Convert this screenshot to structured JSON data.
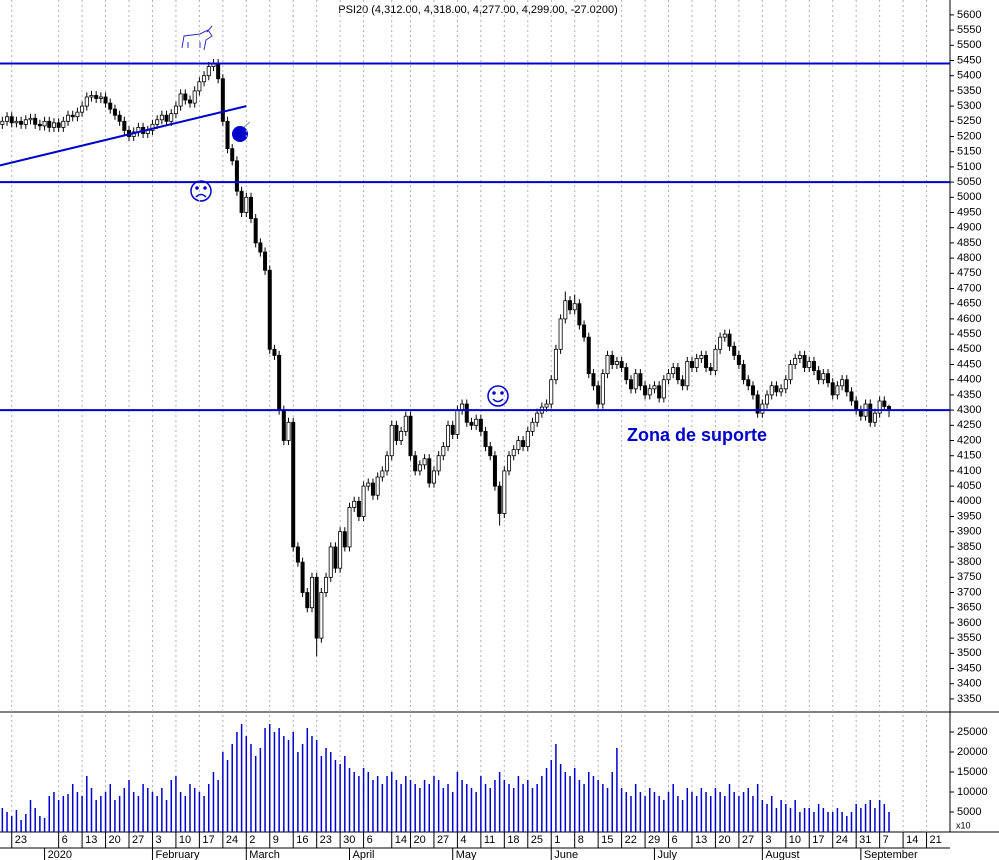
{
  "chart_data": {
    "type": "candlestick",
    "title": "PSI20 (4,312.00, 4,318.00, 4,277.00, 4,299.00, -27.0200)",
    "open": [
      5240,
      5250,
      5265,
      5245,
      5250,
      5240,
      5255,
      5260,
      5240,
      5235,
      5250,
      5230,
      5245,
      5230,
      5250,
      5270,
      5265,
      5280,
      5300,
      5330,
      5335,
      5325,
      5330,
      5310,
      5290,
      5270,
      5250,
      5220,
      5200,
      5215,
      5230,
      5210,
      5220,
      5240,
      5255,
      5270,
      5250,
      5275,
      5300,
      5340,
      5320,
      5310,
      5350,
      5380,
      5400,
      5430,
      5440,
      5390,
      5250,
      5160,
      5120,
      5020,
      4950,
      5000,
      4930,
      4850,
      4820,
      4760,
      4500,
      4480,
      4300,
      4200,
      4260,
      3850,
      3800,
      3700,
      3650,
      3750,
      3550,
      3700,
      3750,
      3850,
      3780,
      3900,
      3850,
      3980,
      4000,
      3950,
      4050,
      4060,
      4020,
      4080,
      4100,
      4150,
      4250,
      4200,
      4230,
      4280,
      4150,
      4100,
      4120,
      4140,
      4060,
      4100,
      4150,
      4180,
      4250,
      4220,
      4300,
      4320,
      4260,
      4250,
      4270,
      4230,
      4180,
      4150,
      4050,
      3960,
      4100,
      4150,
      4170,
      4200,
      4180,
      4230,
      4260,
      4290,
      4310,
      4320,
      4400,
      4500,
      4600,
      4660,
      4630,
      4650,
      4580,
      4540,
      4420,
      4380,
      4320,
      4420,
      4480,
      4450,
      4460,
      4440,
      4400,
      4370,
      4420,
      4380,
      4350,
      4370,
      4380,
      4340,
      4400,
      4420,
      4440,
      4400,
      4380,
      4460,
      4440,
      4470,
      4480,
      4440,
      4430,
      4500,
      4540,
      4550,
      4510,
      4480,
      4450,
      4400,
      4380,
      4350,
      4290,
      4320,
      4350,
      4380,
      4360,
      4370,
      4400,
      4450,
      4470,
      4480,
      4440,
      4460,
      4430,
      4400,
      4420,
      4390,
      4350,
      4380,
      4400,
      4360,
      4330,
      4300,
      4280,
      4320,
      4260,
      4290,
      4330,
      4312
    ],
    "high": [
      5265,
      5280,
      5280,
      5265,
      5265,
      5270,
      5275,
      5275,
      5255,
      5265,
      5265,
      5260,
      5260,
      5265,
      5285,
      5285,
      5295,
      5315,
      5345,
      5350,
      5350,
      5345,
      5345,
      5325,
      5305,
      5285,
      5265,
      5235,
      5230,
      5245,
      5245,
      5235,
      5255,
      5270,
      5285,
      5285,
      5290,
      5315,
      5355,
      5355,
      5335,
      5365,
      5395,
      5415,
      5445,
      5455,
      5455,
      5405,
      5265,
      5175,
      5135,
      5035,
      5015,
      5015,
      4945,
      4865,
      4835,
      4775,
      4515,
      4495,
      4315,
      4275,
      4275,
      3865,
      3815,
      3715,
      3765,
      3765,
      3715,
      3765,
      3865,
      3865,
      3915,
      3915,
      3995,
      4015,
      4015,
      4065,
      4075,
      4075,
      4095,
      4115,
      4165,
      4265,
      4265,
      4245,
      4295,
      4295,
      4165,
      4135,
      4155,
      4155,
      4115,
      4165,
      4195,
      4265,
      4265,
      4315,
      4335,
      4335,
      4275,
      4285,
      4285,
      4245,
      4195,
      4165,
      4065,
      4115,
      4165,
      4185,
      4215,
      4215,
      4245,
      4275,
      4305,
      4325,
      4335,
      4415,
      4515,
      4615,
      4690,
      4675,
      4680,
      4665,
      4595,
      4555,
      4435,
      4395,
      4435,
      4495,
      4495,
      4475,
      4475,
      4455,
      4415,
      4435,
      4435,
      4395,
      4385,
      4395,
      4395,
      4415,
      4435,
      4455,
      4455,
      4415,
      4475,
      4475,
      4485,
      4495,
      4495,
      4455,
      4515,
      4555,
      4565,
      4565,
      4525,
      4495,
      4465,
      4415,
      4395,
      4365,
      4335,
      4365,
      4395,
      4395,
      4385,
      4415,
      4465,
      4485,
      4495,
      4495,
      4475,
      4475,
      4445,
      4435,
      4435,
      4405,
      4395,
      4415,
      4415,
      4375,
      4345,
      4315,
      4335,
      4335,
      4305,
      4345,
      4345,
      4318
    ],
    "low": [
      5225,
      5235,
      5230,
      5230,
      5225,
      5225,
      5240,
      5225,
      5220,
      5220,
      5215,
      5215,
      5215,
      5215,
      5235,
      5250,
      5250,
      5265,
      5285,
      5315,
      5310,
      5310,
      5295,
      5275,
      5255,
      5235,
      5205,
      5185,
      5185,
      5200,
      5195,
      5195,
      5205,
      5225,
      5240,
      5235,
      5235,
      5260,
      5285,
      5305,
      5295,
      5295,
      5335,
      5365,
      5385,
      5415,
      5375,
      5235,
      5145,
      5105,
      5005,
      4935,
      4935,
      4915,
      4835,
      4805,
      4745,
      4485,
      4465,
      4285,
      4185,
      4185,
      3835,
      3785,
      3685,
      3635,
      3635,
      3490,
      3535,
      3685,
      3735,
      3765,
      3765,
      3835,
      3835,
      3965,
      3935,
      3935,
      4035,
      4005,
      4005,
      4065,
      4085,
      4135,
      4185,
      4185,
      4215,
      4135,
      4085,
      4085,
      4105,
      4045,
      4045,
      4085,
      4135,
      4165,
      4205,
      4205,
      4285,
      4245,
      4235,
      4235,
      4215,
      4165,
      4135,
      4035,
      3920,
      3945,
      4085,
      4135,
      4155,
      4165,
      4165,
      4215,
      4245,
      4275,
      4295,
      4305,
      4385,
      4485,
      4585,
      4615,
      4615,
      4565,
      4525,
      4405,
      4365,
      4305,
      4305,
      4405,
      4435,
      4435,
      4425,
      4385,
      4355,
      4355,
      4365,
      4335,
      4335,
      4355,
      4325,
      4325,
      4385,
      4405,
      4385,
      4365,
      4365,
      4425,
      4425,
      4455,
      4425,
      4415,
      4415,
      4485,
      4525,
      4495,
      4465,
      4435,
      4385,
      4365,
      4335,
      4275,
      4275,
      4305,
      4335,
      4345,
      4345,
      4355,
      4385,
      4435,
      4455,
      4425,
      4425,
      4415,
      4385,
      4385,
      4375,
      4335,
      4335,
      4365,
      4345,
      4315,
      4285,
      4265,
      4265,
      4245,
      4245,
      4275,
      4297,
      4277
    ],
    "close": [
      5250,
      5265,
      5245,
      5250,
      5240,
      5255,
      5260,
      5240,
      5235,
      5250,
      5230,
      5245,
      5230,
      5250,
      5270,
      5265,
      5280,
      5300,
      5330,
      5335,
      5325,
      5330,
      5310,
      5290,
      5270,
      5250,
      5220,
      5200,
      5215,
      5230,
      5210,
      5220,
      5240,
      5255,
      5270,
      5250,
      5275,
      5300,
      5340,
      5320,
      5310,
      5350,
      5380,
      5400,
      5430,
      5440,
      5390,
      5250,
      5160,
      5120,
      5020,
      4950,
      5000,
      4930,
      4850,
      4820,
      4760,
      4500,
      4480,
      4300,
      4200,
      4260,
      3850,
      3800,
      3700,
      3650,
      3750,
      3550,
      3700,
      3750,
      3850,
      3780,
      3900,
      3850,
      3980,
      4000,
      3950,
      4050,
      4060,
      4020,
      4080,
      4100,
      4150,
      4250,
      4200,
      4230,
      4280,
      4150,
      4100,
      4120,
      4140,
      4060,
      4100,
      4150,
      4180,
      4250,
      4220,
      4300,
      4320,
      4260,
      4250,
      4270,
      4230,
      4180,
      4150,
      4050,
      3960,
      4100,
      4150,
      4170,
      4200,
      4180,
      4230,
      4260,
      4290,
      4310,
      4320,
      4400,
      4500,
      4600,
      4660,
      4630,
      4650,
      4580,
      4540,
      4420,
      4380,
      4320,
      4420,
      4480,
      4450,
      4460,
      4440,
      4400,
      4370,
      4420,
      4380,
      4350,
      4370,
      4380,
      4340,
      4400,
      4420,
      4440,
      4400,
      4380,
      4460,
      4440,
      4470,
      4480,
      4440,
      4430,
      4500,
      4540,
      4550,
      4510,
      4480,
      4450,
      4400,
      4380,
      4350,
      4290,
      4320,
      4350,
      4380,
      4360,
      4370,
      4400,
      4450,
      4470,
      4480,
      4440,
      4460,
      4430,
      4400,
      4420,
      4390,
      4350,
      4380,
      4400,
      4360,
      4330,
      4300,
      4280,
      4320,
      4260,
      4290,
      4330,
      4312,
      4299
    ],
    "volume": [
      6000,
      5000,
      4000,
      5500,
      3000,
      4500,
      8000,
      6000,
      4000,
      3500,
      9000,
      10000,
      8000,
      9000,
      9500,
      12000,
      10000,
      9000,
      14000,
      11000,
      8000,
      9000,
      10000,
      12000,
      8000,
      9000,
      11000,
      13000,
      10000,
      9000,
      12000,
      11000,
      10000,
      9000,
      11000,
      8000,
      13000,
      14000,
      10000,
      9000,
      12000,
      11000,
      10000,
      9000,
      12000,
      15000,
      13000,
      20000,
      18000,
      22000,
      25000,
      27000,
      24000,
      22000,
      19000,
      21000,
      26000,
      27000,
      25000,
      26000,
      24000,
      23000,
      25000,
      20000,
      22000,
      26000,
      24000,
      23000,
      19000,
      21000,
      20000,
      18000,
      17000,
      19000,
      16000,
      15000,
      14000,
      16000,
      15000,
      13000,
      14000,
      12000,
      14000,
      15000,
      13000,
      12000,
      14000,
      13000,
      12000,
      11000,
      13000,
      12000,
      14000,
      13000,
      11000,
      12000,
      10000,
      15000,
      13000,
      12000,
      11000,
      10000,
      14000,
      12000,
      11000,
      13000,
      15000,
      13000,
      12000,
      11000,
      14000,
      12000,
      13000,
      11000,
      12000,
      14000,
      16000,
      18000,
      22000,
      17000,
      15000,
      14000,
      16000,
      13000,
      12000,
      15000,
      14000,
      13000,
      12000,
      11000,
      15000,
      21000,
      11000,
      10000,
      9000,
      12000,
      10000,
      9000,
      11000,
      10000,
      9000,
      8000,
      10000,
      12000,
      9000,
      8000,
      11000,
      10000,
      9000,
      11000,
      10000,
      9000,
      11000,
      10000,
      9000,
      12000,
      10000,
      9000,
      10000,
      11000,
      9000,
      12000,
      8000,
      7000,
      9000,
      6000,
      8000,
      7000,
      6000,
      8000,
      5000,
      6000,
      6000,
      5000,
      7000,
      6000,
      5000,
      5000,
      6000,
      5000,
      4000,
      5000,
      7000,
      6000,
      7000,
      8000,
      6000,
      8000,
      7000,
      5000
    ],
    "xlim": [
      -0.5,
      202
    ],
    "xticks": [
      {
        "value": 2,
        "label": "23"
      },
      {
        "value": 12,
        "label": "6"
      },
      {
        "value": 17,
        "label": "13"
      },
      {
        "value": 22,
        "label": "20"
      },
      {
        "value": 27,
        "label": "27"
      },
      {
        "value": 32,
        "label": "3"
      },
      {
        "value": 37,
        "label": "10"
      },
      {
        "value": 42,
        "label": "17"
      },
      {
        "value": 47,
        "label": "24"
      },
      {
        "value": 52,
        "label": "2"
      },
      {
        "value": 57,
        "label": "9"
      },
      {
        "value": 62,
        "label": "16"
      },
      {
        "value": 67,
        "label": "23"
      },
      {
        "value": 72,
        "label": "30"
      },
      {
        "value": 77,
        "label": "6"
      },
      {
        "value": 83,
        "label": "14"
      },
      {
        "value": 87,
        "label": "20"
      },
      {
        "value": 92,
        "label": "27"
      },
      {
        "value": 97,
        "label": "4"
      },
      {
        "value": 102,
        "label": "11"
      },
      {
        "value": 107,
        "label": "18"
      },
      {
        "value": 112,
        "label": "25"
      },
      {
        "value": 117,
        "label": "1"
      },
      {
        "value": 122,
        "label": "8"
      },
      {
        "value": 127,
        "label": "15"
      },
      {
        "value": 132,
        "label": "22"
      },
      {
        "value": 137,
        "label": "29"
      },
      {
        "value": 142,
        "label": "6"
      },
      {
        "value": 147,
        "label": "13"
      },
      {
        "value": 152,
        "label": "20"
      },
      {
        "value": 157,
        "label": "27"
      },
      {
        "value": 162,
        "label": "3"
      },
      {
        "value": 167,
        "label": "10"
      },
      {
        "value": 172,
        "label": "17"
      },
      {
        "value": 177,
        "label": "24"
      },
      {
        "value": 182,
        "label": "31"
      },
      {
        "value": 187,
        "label": "7"
      },
      {
        "value": 192,
        "label": "14"
      },
      {
        "value": 197,
        "label": "21"
      }
    ],
    "months": [
      {
        "value": 9,
        "label": "2020"
      },
      {
        "value": 32,
        "label": "February"
      },
      {
        "value": 52,
        "label": "March"
      },
      {
        "value": 74,
        "label": "April"
      },
      {
        "value": 96,
        "label": "May"
      },
      {
        "value": 117,
        "label": "June"
      },
      {
        "value": 139,
        "label": "July"
      },
      {
        "value": 162,
        "label": "August"
      },
      {
        "value": 183,
        "label": "September"
      }
    ],
    "ylim": [
      3307,
      5649
    ],
    "yticks": [
      3350,
      3400,
      3450,
      3500,
      3550,
      3600,
      3650,
      3700,
      3750,
      3800,
      3850,
      3900,
      3950,
      4000,
      4050,
      4100,
      4150,
      4200,
      4250,
      4300,
      4350,
      4400,
      4450,
      4500,
      4550,
      4600,
      4650,
      4700,
      4750,
      4800,
      4850,
      4900,
      4950,
      5000,
      5050,
      5100,
      5150,
      5200,
      5250,
      5300,
      5350,
      5400,
      5450,
      5500,
      5550,
      5600
    ],
    "y2lim": [
      0,
      30000
    ],
    "y2ticks": [
      5000,
      10000,
      15000,
      20000,
      25000
    ],
    "volume_unit": "x10",
    "hlines": [
      5440,
      5050,
      4300
    ],
    "trendline": {
      "x": [
        -0.5,
        52
      ],
      "y": [
        5105,
        5300
      ]
    },
    "annotation": "Zona de suporte",
    "up_color": "#ffffff",
    "down_color": "#000000",
    "volume_color": "#0000cc",
    "line_color": "#0000cc",
    "grid": true
  }
}
